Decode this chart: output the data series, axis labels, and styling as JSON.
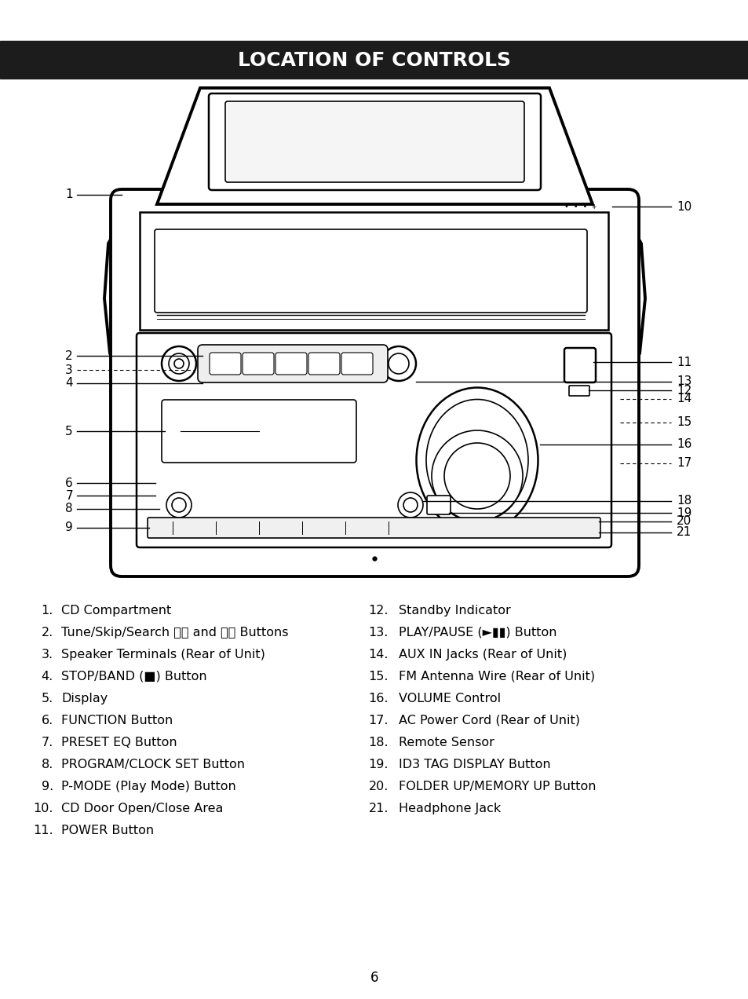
{
  "title": "LOCATION OF CONTROLS",
  "title_bg": "#1c1c1c",
  "title_color": "#ffffff",
  "page_number": "6",
  "left_items": [
    [
      "1.",
      "CD Compartment"
    ],
    [
      "2.",
      "Tune/Skip/Search ⧖⧖ and ⧗⧗ Buttons"
    ],
    [
      "3.",
      "Speaker Terminals (Rear of Unit)"
    ],
    [
      "4.",
      "STOP/BAND (■) Button"
    ],
    [
      "5.",
      "Display"
    ],
    [
      "6.",
      "FUNCTION Button"
    ],
    [
      "7.",
      "PRESET EQ Button"
    ],
    [
      "8.",
      "PROGRAM/CLOCK SET Button"
    ],
    [
      "9.",
      "P-MODE (Play Mode) Button"
    ],
    [
      "10.",
      "CD Door Open/Close Area"
    ],
    [
      "11.",
      "POWER Button"
    ]
  ],
  "right_items": [
    [
      "12.",
      "Standby Indicator"
    ],
    [
      "13.",
      "PLAY/PAUSE (►▮▮) Button"
    ],
    [
      "14.",
      "AUX IN Jacks (Rear of Unit)"
    ],
    [
      "15.",
      "FM Antenna Wire (Rear of Unit)"
    ],
    [
      "16.",
      "VOLUME Control"
    ],
    [
      "17.",
      "AC Power Cord (Rear of Unit)"
    ],
    [
      "18.",
      "Remote Sensor"
    ],
    [
      "19.",
      "ID3 TAG DISPLAY Button"
    ],
    [
      "20.",
      "FOLDER UP/MEMORY UP Button"
    ],
    [
      "21.",
      "Headphone Jack"
    ]
  ]
}
